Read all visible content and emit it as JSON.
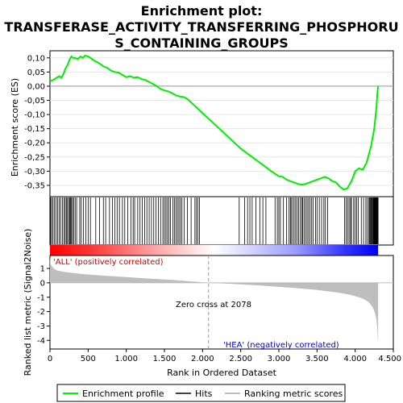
{
  "chart_data": {
    "type": "line",
    "title_line1": "Enrichment plot:",
    "title_line2": "TRANSFERASE_ACTIVITY_TRANSFERRING_PHOSPHORU",
    "title_line3": "S_CONTAINING_GROUPS",
    "top_panel": {
      "ylabel": "Enrichment score (ES)",
      "ylim": [
        -0.39,
        0.125
      ],
      "yticks": [
        0.1,
        0.05,
        0.0,
        -0.05,
        -0.1,
        -0.15,
        -0.2,
        -0.25,
        -0.3,
        -0.35
      ],
      "ytick_labels": [
        "0,10",
        "0,05",
        "0,00",
        "-0,05",
        "-0,10",
        "-0,15",
        "-0,20",
        "-0,25",
        "-0,30",
        "-0,35"
      ],
      "series": [
        {
          "name": "Enrichment profile",
          "color": "#00ee00",
          "x": [
            0,
            30,
            60,
            90,
            120,
            150,
            180,
            200,
            230,
            260,
            280,
            300,
            330,
            360,
            400,
            430,
            460,
            500,
            540,
            580,
            620,
            660,
            700,
            750,
            800,
            850,
            900,
            950,
            1000,
            1050,
            1100,
            1150,
            1200,
            1250,
            1300,
            1350,
            1400,
            1450,
            1500,
            1550,
            1600,
            1650,
            1700,
            1750,
            1800,
            1900,
            2000,
            2100,
            2200,
            2300,
            2400,
            2500,
            2600,
            2700,
            2800,
            2900,
            3000,
            3050,
            3100,
            3150,
            3200,
            3250,
            3300,
            3350,
            3400,
            3450,
            3500,
            3550,
            3600,
            3650,
            3700,
            3750,
            3800,
            3850,
            3900,
            3930,
            3960,
            4000,
            4050,
            4100,
            4150,
            4180,
            4210,
            4230,
            4250,
            4265,
            4280,
            4290,
            4300
          ],
          "y": [
            0.02,
            0.02,
            0.025,
            0.03,
            0.035,
            0.03,
            0.045,
            0.06,
            0.075,
            0.095,
            0.105,
            0.1,
            0.1,
            0.095,
            0.105,
            0.1,
            0.108,
            0.105,
            0.098,
            0.09,
            0.085,
            0.078,
            0.07,
            0.065,
            0.055,
            0.05,
            0.048,
            0.04,
            0.032,
            0.035,
            0.03,
            0.032,
            0.025,
            0.022,
            0.015,
            0.008,
            0.0,
            -0.01,
            -0.015,
            -0.018,
            -0.025,
            -0.032,
            -0.036,
            -0.038,
            -0.045,
            -0.07,
            -0.095,
            -0.12,
            -0.145,
            -0.17,
            -0.195,
            -0.22,
            -0.24,
            -0.26,
            -0.28,
            -0.3,
            -0.318,
            -0.32,
            -0.33,
            -0.335,
            -0.34,
            -0.345,
            -0.348,
            -0.345,
            -0.34,
            -0.335,
            -0.33,
            -0.325,
            -0.32,
            -0.325,
            -0.335,
            -0.34,
            -0.355,
            -0.365,
            -0.36,
            -0.345,
            -0.33,
            -0.3,
            -0.29,
            -0.295,
            -0.27,
            -0.24,
            -0.21,
            -0.18,
            -0.15,
            -0.11,
            -0.07,
            -0.03,
            0.0
          ]
        }
      ]
    },
    "hits": {
      "name": "Hits",
      "color": "#000000",
      "x": [
        8,
        22,
        40,
        60,
        80,
        100,
        120,
        140,
        165,
        185,
        200,
        215,
        230,
        245,
        258,
        270,
        282,
        295,
        310,
        330,
        350,
        390,
        410,
        440,
        470,
        500,
        530,
        600,
        650,
        700,
        730,
        780,
        820,
        850,
        880,
        910,
        950,
        980,
        1020,
        1060,
        1090,
        1110,
        1150,
        1180,
        1210,
        1240,
        1270,
        1300,
        1330,
        1360,
        1390,
        1420,
        1450,
        1480,
        1500,
        1520,
        1540,
        1560,
        1580,
        1610,
        1630,
        1650,
        1670,
        1690,
        1710,
        1730,
        1760,
        1800,
        1850,
        1900,
        1920,
        1940,
        1960,
        2480,
        2550,
        2590,
        2620,
        2650,
        2700,
        2750,
        2790,
        2830,
        2950,
        2980,
        3000,
        3020,
        3060,
        3100,
        3130,
        3150,
        3160,
        3180,
        3200,
        3220,
        3240,
        3260,
        3280,
        3300,
        3310,
        3330,
        3350,
        3370,
        3390,
        3410,
        3430,
        3450,
        3480,
        3500,
        3530,
        3560,
        3590,
        3610,
        3640,
        3860,
        3880,
        3900,
        3920,
        3940,
        3950,
        3980,
        4000,
        4020,
        4040,
        4080,
        4110,
        4140,
        4160,
        4180,
        4190,
        4200,
        4210,
        4215,
        4220,
        4230,
        4240,
        4245,
        4250,
        4255,
        4260,
        4262,
        4265,
        4268,
        4272,
        4276,
        4280,
        4283,
        4286,
        4288,
        4290,
        4292,
        4294,
        4296,
        4298,
        4300
      ]
    },
    "bottom_panel": {
      "ylabel": "Ranked list metric (Signal2Noise)",
      "xlabel": "Rank in Ordered Dataset",
      "ylim": [
        -4.6,
        1.9
      ],
      "yticks": [
        1,
        0,
        -1,
        -2,
        -3,
        -4
      ],
      "ytick_labels": [
        "1",
        "0",
        "-1",
        "-2",
        "-3",
        "-4"
      ],
      "series": [
        {
          "name": "Ranking metric scores",
          "color": "#bebebe",
          "x": [
            0,
            10,
            30,
            60,
            100,
            200,
            400,
            700,
            1000,
            1300,
            1600,
            1900,
            2078,
            2400,
            2800,
            3200,
            3500,
            3800,
            3950,
            4050,
            4120,
            4180,
            4230,
            4260,
            4280,
            4290,
            4300
          ],
          "y": [
            1.8,
            1.3,
            1.1,
            0.95,
            0.85,
            0.75,
            0.62,
            0.5,
            0.4,
            0.3,
            0.2,
            0.08,
            0.0,
            -0.08,
            -0.2,
            -0.35,
            -0.5,
            -0.7,
            -0.85,
            -1.0,
            -1.15,
            -1.35,
            -1.7,
            -2.1,
            -2.6,
            -3.2,
            -4.3
          ]
        }
      ],
      "zero_cross_label": "Zero cross at 2078",
      "zero_cross_x": 2078,
      "pos_label": "'ALL' (positively correlated)",
      "neg_label": "'HEA' (negatively correlated)"
    },
    "xlim": [
      0,
      4500
    ],
    "xticks": [
      0,
      500,
      1000,
      1500,
      2000,
      2500,
      3000,
      3500,
      4000,
      4500
    ],
    "xtick_labels": [
      "0",
      "500",
      "1.000",
      "1.500",
      "2.000",
      "2.500",
      "3.000",
      "3.500",
      "4.000",
      "4.500"
    ],
    "legend": {
      "placement": "bottom",
      "entries": [
        "Enrichment profile",
        "Hits",
        "Ranking metric scores"
      ]
    }
  }
}
